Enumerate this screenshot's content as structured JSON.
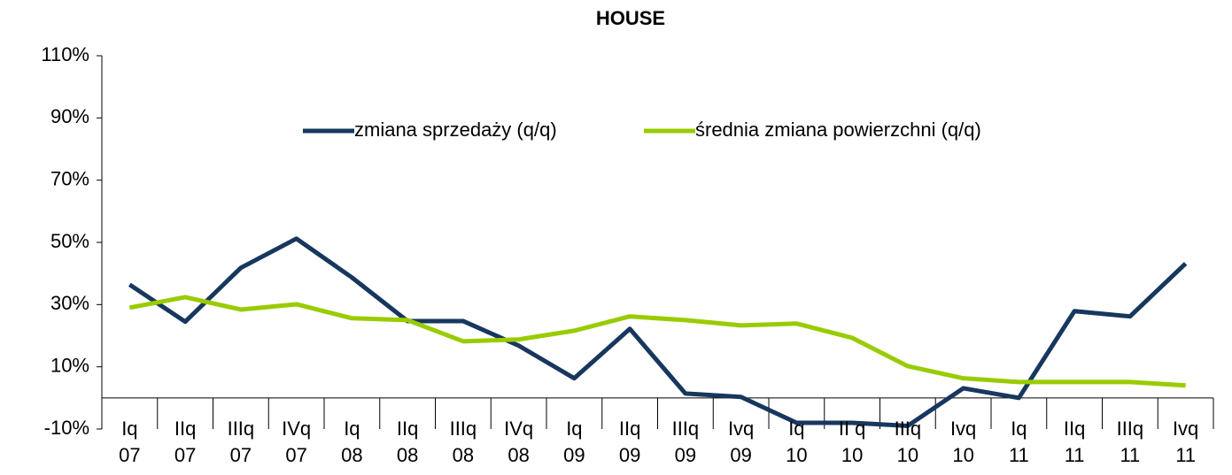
{
  "chart_data": {
    "type": "line",
    "title": "HOUSE",
    "categories": [
      "Iq\n07",
      "IIq\n07",
      "IIIq\n07",
      "IVq\n07",
      "Iq\n08",
      "IIq\n08",
      "IIIq\n08",
      "IVq\n08",
      "Iq\n09",
      "IIq\n09",
      "IIIq\n09",
      "Ivq\n09",
      "Iq\n10",
      "II q\n10",
      "IIIq\n10",
      "Ivq\n10",
      "Iq\n11",
      "IIq\n11",
      "IIIq\n11",
      "Ivq\n11"
    ],
    "series": [
      {
        "name": "zmiana sprzedaży (q/q)",
        "color": "#17375e",
        "values": [
          36.4,
          24.5,
          41.8,
          51.2,
          38.7,
          24.7,
          24.7,
          16.8,
          6.3,
          22.2,
          1.4,
          0.3,
          -8,
          -8,
          -9,
          3.1,
          0,
          27.9,
          26.2,
          43.2
        ]
      },
      {
        "name": "średnia zmiana powierzchni (q/q)",
        "color": "#99cc00",
        "values": [
          29,
          32.4,
          28.4,
          30.1,
          25.6,
          25,
          18.2,
          18.8,
          21.6,
          26.2,
          25,
          23.3,
          23.9,
          19.3,
          10.2,
          6.3,
          5.1,
          5.1,
          5.1,
          4
        ]
      }
    ],
    "ylim": [
      -10,
      110
    ],
    "yticks": [
      {
        "value": -10,
        "label": "-10%"
      },
      {
        "value": 10,
        "label": "10%"
      },
      {
        "value": 30,
        "label": "30%"
      },
      {
        "value": 50,
        "label": "50%"
      },
      {
        "value": 70,
        "label": "70%"
      },
      {
        "value": 90,
        "label": "90%"
      },
      {
        "value": 110,
        "label": "110%"
      }
    ],
    "grid": false
  }
}
